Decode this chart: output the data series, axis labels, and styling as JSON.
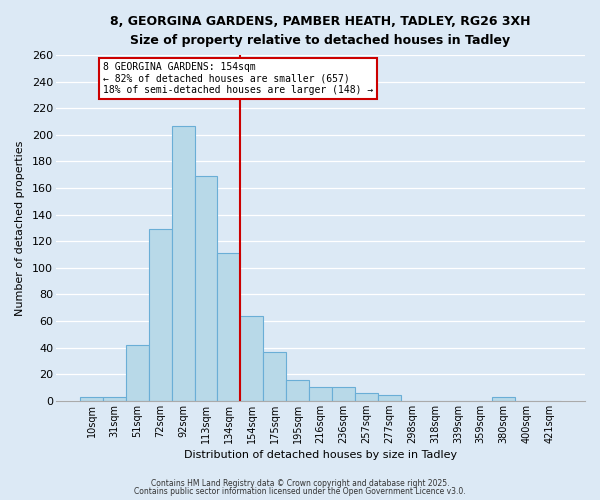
{
  "title_line1": "8, GEORGINA GARDENS, PAMBER HEATH, TADLEY, RG26 3XH",
  "title_line2": "Size of property relative to detached houses in Tadley",
  "xlabel": "Distribution of detached houses by size in Tadley",
  "ylabel": "Number of detached properties",
  "bar_labels": [
    "10sqm",
    "31sqm",
    "51sqm",
    "72sqm",
    "92sqm",
    "113sqm",
    "134sqm",
    "154sqm",
    "175sqm",
    "195sqm",
    "216sqm",
    "236sqm",
    "257sqm",
    "277sqm",
    "298sqm",
    "318sqm",
    "339sqm",
    "359sqm",
    "380sqm",
    "400sqm",
    "421sqm"
  ],
  "bar_heights": [
    3,
    3,
    42,
    129,
    207,
    169,
    111,
    64,
    37,
    16,
    10,
    10,
    6,
    4,
    0,
    0,
    0,
    0,
    3,
    0,
    0
  ],
  "bar_color": "#b8d9e8",
  "bar_edge_color": "#6aaed6",
  "vline_color": "#cc0000",
  "annotation_title": "8 GEORGINA GARDENS: 154sqm",
  "annotation_line1": "← 82% of detached houses are smaller (657)",
  "annotation_line2": "18% of semi-detached houses are larger (148) →",
  "annotation_box_color": "#ffffff",
  "annotation_box_edge": "#cc0000",
  "ylim": [
    0,
    260
  ],
  "yticks": [
    0,
    20,
    40,
    60,
    80,
    100,
    120,
    140,
    160,
    180,
    200,
    220,
    240,
    260
  ],
  "footer_line1": "Contains HM Land Registry data © Crown copyright and database right 2025.",
  "footer_line2": "Contains public sector information licensed under the Open Government Licence v3.0.",
  "bg_color": "#dce9f5",
  "plot_bg_color": "#dce9f5"
}
